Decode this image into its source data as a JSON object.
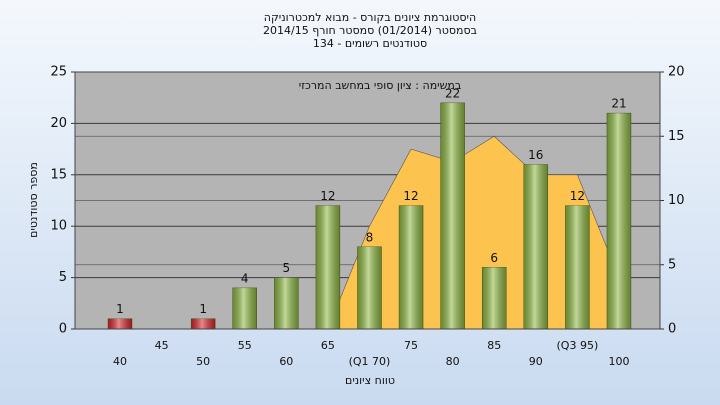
{
  "chart_data": {
    "type": "bar",
    "title": [
      "היסטוגרמת ציונים בקורס - מבוא למכטרוניקה",
      "בסמסטר  (01/2014)  סמסטר חורף 2014/15",
      "סטודנטים רשומים - 134"
    ],
    "annotation": "במשימה : ציון סופי במחשב המרכזי",
    "x_label": "טווח ציונים",
    "y_label": "מספר סטודנטים",
    "categories": [
      "40",
      "45",
      "50",
      "55",
      "60",
      "65",
      "(Q1 70)",
      "75",
      "80",
      "85",
      "90",
      "(Q3 95)",
      "100"
    ],
    "series": [
      {
        "type": "bar",
        "values": [
          1,
          null,
          1,
          4,
          5,
          12,
          8,
          12,
          22,
          6,
          16,
          12,
          21
        ],
        "colors": [
          "#d9262b",
          "#8fb943",
          "#d9262b",
          "#8fb943",
          "#8fb943",
          "#8fb943",
          "#8fb943",
          "#8fb943",
          "#8fb943",
          "#8fb943",
          "#8fb943",
          "#8fb943",
          "#8fb943"
        ]
      },
      {
        "type": "area",
        "axis": "y2",
        "color": "#fcc44f",
        "values": [
          null,
          null,
          null,
          null,
          null,
          0,
          8,
          14,
          13,
          15,
          12,
          12,
          4
        ]
      }
    ],
    "ylim": [
      0,
      25
    ],
    "yticks": [
      0,
      5,
      10,
      15,
      20,
      25
    ],
    "y2lim": [
      0,
      20
    ],
    "y2ticks": [
      0,
      5,
      10,
      15,
      20
    ],
    "grid": true
  }
}
